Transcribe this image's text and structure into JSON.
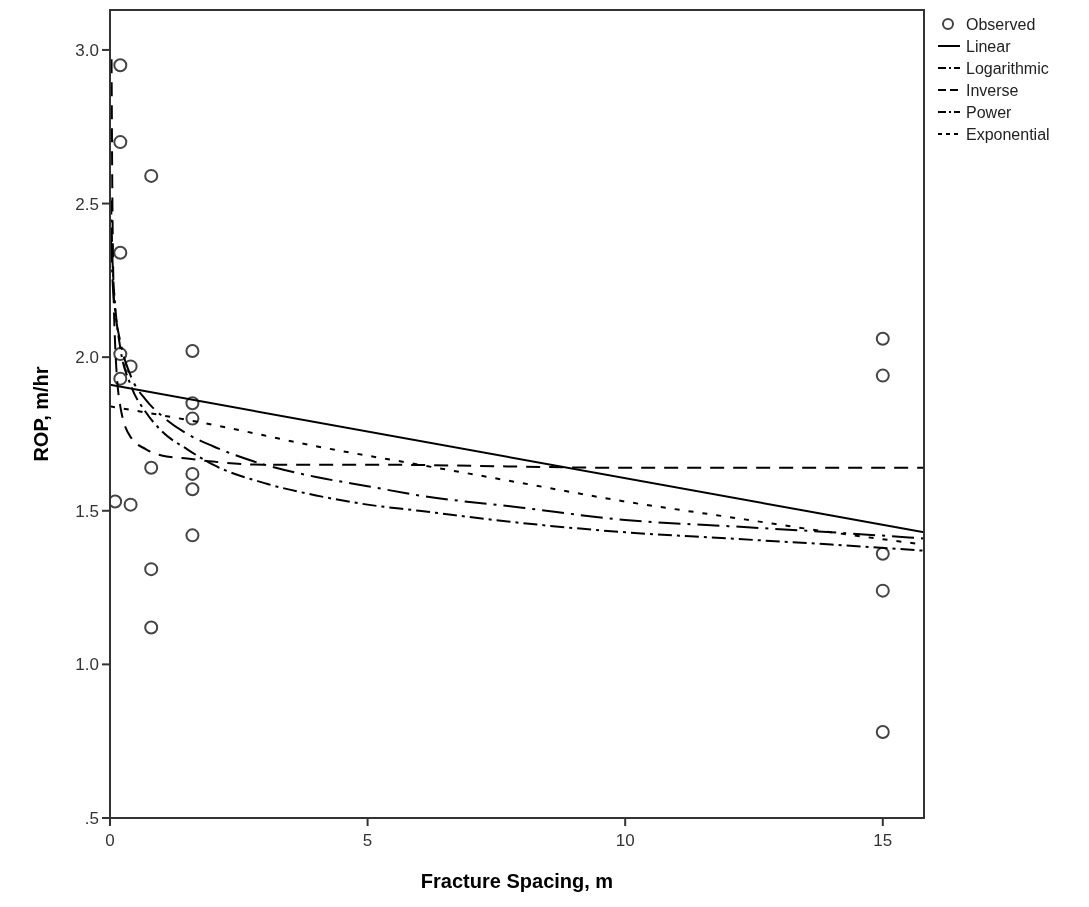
{
  "chart_data": {
    "type": "scatter",
    "xlabel": "Fracture Spacing, m",
    "ylabel": "ROP, m/hr",
    "xlim": [
      0,
      15.8
    ],
    "ylim": [
      0.5,
      3.13
    ],
    "xticks": [
      0,
      5,
      10,
      15
    ],
    "yticks": [
      {
        "value": 0.5,
        "label": ".5"
      },
      {
        "value": 1,
        "label": "1.0"
      },
      {
        "value": 1.5,
        "label": "1.5"
      },
      {
        "value": 2,
        "label": "2.0"
      },
      {
        "value": 2.5,
        "label": "2.5"
      },
      {
        "value": 3,
        "label": "3.0"
      }
    ],
    "grid": false,
    "legend": "top right",
    "series": [
      {
        "name": "Observed",
        "marker": "circle",
        "color": "#444444",
        "x": [
          0.2,
          0.2,
          0.8,
          0.2,
          0.2,
          1.6,
          0.4,
          0.2,
          1.6,
          1.6,
          0.8,
          1.6,
          1.6,
          0.1,
          0.4,
          1.6,
          0.8,
          0.8,
          15,
          15,
          15,
          15,
          15
        ],
        "values": [
          2.95,
          2.7,
          2.59,
          2.34,
          2.01,
          2.02,
          1.97,
          1.93,
          1.85,
          1.8,
          1.64,
          1.62,
          1.57,
          1.53,
          1.52,
          1.42,
          1.31,
          1.12,
          2.06,
          1.94,
          1.36,
          1.24,
          0.78
        ]
      },
      {
        "name": "Linear",
        "type": "line",
        "line_style": "solid",
        "color": "#000000",
        "x": [
          0,
          15.8
        ],
        "values": [
          1.91,
          1.43
        ]
      },
      {
        "name": "Logarithmic",
        "type": "line",
        "line_style": "longdashdot",
        "color": "#000000",
        "x": [
          0.02,
          0.05,
          0.1,
          0.2,
          0.4,
          0.7,
          1,
          1.5,
          2,
          3,
          4,
          5,
          6,
          8,
          10,
          12,
          14,
          15.8
        ],
        "values": [
          2.38,
          2.25,
          2.15,
          2.05,
          1.94,
          1.86,
          1.81,
          1.75,
          1.71,
          1.65,
          1.61,
          1.58,
          1.55,
          1.51,
          1.47,
          1.45,
          1.43,
          1.41
        ]
      },
      {
        "name": "Inverse",
        "type": "line",
        "line_style": "dashed",
        "color": "#000000",
        "x": [
          0.03,
          0.05,
          0.1,
          0.2,
          0.4,
          0.7,
          1,
          1.5,
          2,
          3,
          5,
          10,
          15.8
        ],
        "values": [
          2.97,
          2.44,
          2.04,
          1.84,
          1.74,
          1.7,
          1.68,
          1.67,
          1.66,
          1.65,
          1.65,
          1.64,
          1.64
        ]
      },
      {
        "name": "Power",
        "type": "line",
        "line_style": "dashdot",
        "color": "#000000",
        "x": [
          0.02,
          0.05,
          0.1,
          0.2,
          0.4,
          0.7,
          1,
          1.5,
          2,
          3,
          4,
          5,
          6,
          8,
          10,
          12,
          14,
          15.8
        ],
        "values": [
          2.51,
          2.31,
          2.17,
          2.03,
          1.91,
          1.82,
          1.76,
          1.7,
          1.65,
          1.59,
          1.55,
          1.52,
          1.5,
          1.46,
          1.43,
          1.41,
          1.39,
          1.37
        ]
      },
      {
        "name": "Exponential",
        "type": "line",
        "line_style": "dotted",
        "color": "#000000",
        "x": [
          0,
          2,
          4,
          6,
          8,
          10,
          12,
          14,
          15.8
        ],
        "values": [
          1.84,
          1.78,
          1.71,
          1.65,
          1.59,
          1.53,
          1.48,
          1.43,
          1.39
        ]
      }
    ]
  }
}
